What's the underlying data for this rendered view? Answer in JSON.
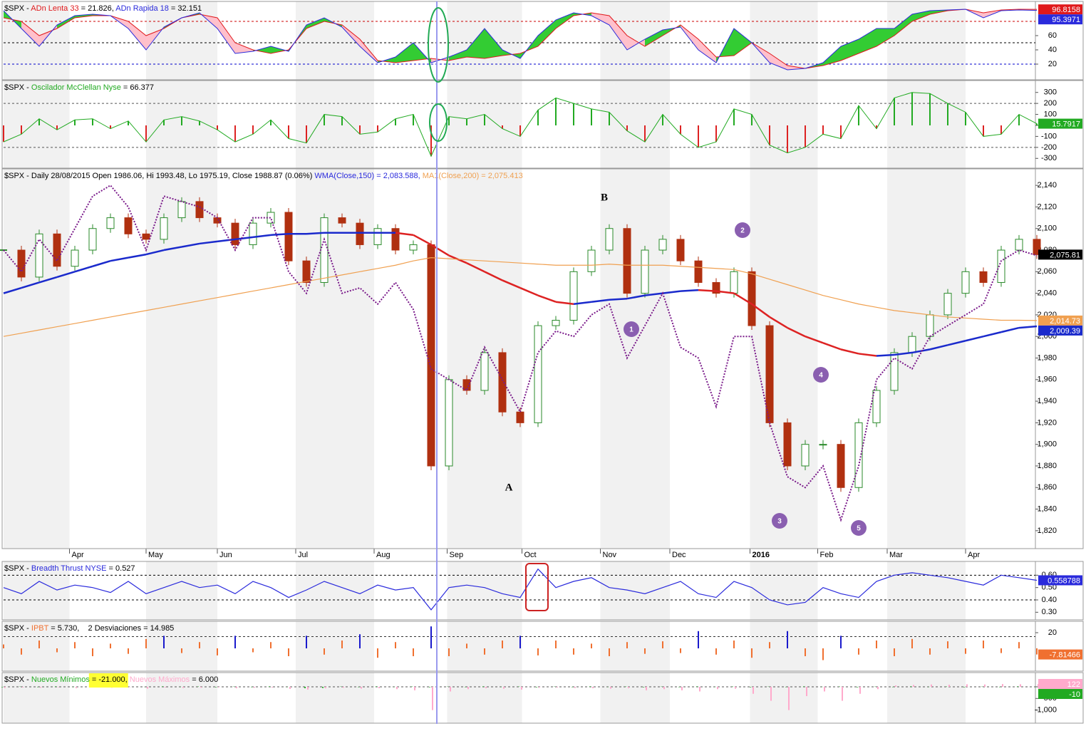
{
  "chart_data": [
    {
      "type": "band",
      "header": [
        {
          "text": "$SPX - ",
          "color": "#000000"
        },
        {
          "text": "ADn Lenta 33",
          "color": "#e0191b"
        },
        {
          "text": " = 21.826, ",
          "color": "#000000"
        },
        {
          "text": "ADn Rapida 18",
          "color": "#2a2adc"
        },
        {
          "text": " = 32.151",
          "color": "#000000"
        }
      ],
      "ylim": [
        10,
        100
      ],
      "yticks": [
        20,
        40,
        60
      ],
      "levels": [
        {
          "value": 80,
          "color": "#cc0000"
        },
        {
          "value": 50,
          "color": "#000000"
        },
        {
          "value": 20,
          "color": "#0000cc"
        }
      ],
      "fill_up": "#33cc33",
      "fill_down": "#ffc0cb",
      "series": [
        {
          "color": "#e0191b",
          "end_label": true,
          "values": [
            85,
            80,
            60,
            70,
            85,
            88,
            88,
            80,
            60,
            70,
            85,
            90,
            85,
            50,
            40,
            35,
            40,
            70,
            80,
            75,
            55,
            25,
            22,
            25,
            28,
            25,
            30,
            28,
            32,
            35,
            45,
            70,
            88,
            92,
            88,
            60,
            45,
            60,
            75,
            55,
            30,
            32,
            50,
            35,
            18,
            14,
            18,
            25,
            35,
            45,
            60,
            80,
            90,
            95,
            97,
            92,
            96,
            97,
            96.8158
          ]
        },
        {
          "color": "#2a2adc",
          "end_label": true,
          "values": [
            95,
            70,
            45,
            75,
            88,
            90,
            88,
            70,
            40,
            72,
            85,
            92,
            70,
            35,
            38,
            45,
            38,
            75,
            85,
            72,
            45,
            22,
            30,
            50,
            22,
            30,
            40,
            70,
            40,
            28,
            60,
            82,
            92,
            88,
            75,
            40,
            55,
            68,
            72,
            40,
            22,
            70,
            50,
            22,
            12,
            14,
            22,
            45,
            55,
            70,
            70,
            90,
            95,
            96,
            97,
            85,
            95,
            96,
            95.3971
          ]
        }
      ]
    },
    {
      "type": "bar",
      "header": [
        {
          "text": "$SPX - ",
          "color": "#000000"
        },
        {
          "text": "Oscilador McClellan Nyse",
          "color": "#22aa22"
        },
        {
          "text": " = 66.377",
          "color": "#000000"
        }
      ],
      "ylim": [
        -350,
        350
      ],
      "yticks": [
        300,
        200,
        100,
        0,
        -100,
        -200,
        -300
      ],
      "levels": [
        {
          "value": 200,
          "color": "#555555"
        },
        {
          "value": -200,
          "color": "#555555"
        }
      ],
      "series": [
        {
          "color": "#22aa22",
          "neg_color": "#dd2222",
          "outline": true,
          "end_label": true,
          "values": [
            -150,
            -80,
            60,
            -40,
            50,
            60,
            -30,
            40,
            -150,
            50,
            80,
            40,
            -40,
            -150,
            -80,
            50,
            -120,
            -160,
            100,
            80,
            -80,
            -60,
            60,
            100,
            -280,
            80,
            60,
            100,
            -30,
            -100,
            140,
            250,
            200,
            150,
            120,
            -50,
            -150,
            100,
            -80,
            -200,
            -150,
            150,
            100,
            -180,
            -250,
            -200,
            -80,
            -120,
            180,
            -30,
            250,
            300,
            290,
            200,
            120,
            -100,
            -80,
            100,
            15.7917
          ]
        }
      ]
    },
    {
      "type": "line",
      "header": [
        {
          "text": "$SPX - Daily 28/08/2015 Open 1986.06, Hi 1993.48, Lo 1975.19, Close 1988.87 (0.06%) ",
          "color": "#000000"
        },
        {
          "text": "WMA(Close,150) = 2,083.588, ",
          "color": "#2a2adc"
        },
        {
          "text": "MA1(Close,200) = 2,075.413",
          "color": "#f0a050"
        }
      ],
      "xlim": [
        0,
        58
      ],
      "xticks": [
        {
          "value": 3.7,
          "label": "Apr"
        },
        {
          "value": 8,
          "label": "May"
        },
        {
          "value": 12,
          "label": "Jun"
        },
        {
          "value": 16.4,
          "label": "Jul"
        },
        {
          "value": 20.8,
          "label": "Aug"
        },
        {
          "value": 24.9,
          "label": "Sep"
        },
        {
          "value": 29.1,
          "label": "Oct"
        },
        {
          "value": 33.5,
          "label": "Nov"
        },
        {
          "value": 37.4,
          "label": "Dec"
        },
        {
          "value": 41.9,
          "label": "2016",
          "bold": true
        },
        {
          "value": 45.7,
          "label": "Feb"
        },
        {
          "value": 49.6,
          "label": "Mar"
        },
        {
          "value": 54,
          "label": "Apr"
        }
      ],
      "ylim": [
        1810,
        2150
      ],
      "yticks": [
        {
          "value": 1820,
          "label": "1,820"
        },
        {
          "value": 1840,
          "label": "1,840"
        },
        {
          "value": 1860,
          "label": "1,860"
        },
        {
          "value": 1880,
          "label": "1,880"
        },
        {
          "value": 1900,
          "label": "1,900"
        },
        {
          "value": 1920,
          "label": "1,920"
        },
        {
          "value": 1940,
          "label": "1,940"
        },
        {
          "value": 1960,
          "label": "1,960"
        },
        {
          "value": 1980,
          "label": "1,980"
        },
        {
          "value": 2000,
          "label": "2,000"
        },
        {
          "value": 2020,
          "label": "2,020"
        },
        {
          "value": 2040,
          "label": "2,040"
        },
        {
          "value": 2060,
          "label": "2,060"
        },
        {
          "value": 2080,
          "label": "2,080"
        },
        {
          "value": 2100,
          "label": "2,100"
        },
        {
          "value": 2120,
          "label": "2,120"
        },
        {
          "value": 2140,
          "label": "2,140"
        }
      ],
      "annotations": [
        "A",
        "B",
        "1",
        "2",
        "3",
        "4",
        "5"
      ],
      "series": [
        {
          "style": "candles",
          "color": "#2a8a2a",
          "down_color": "#b03010",
          "label_color": "#000000",
          "last_label": "2,075.81",
          "values": [
            2080,
            2055,
            2095,
            2065,
            2080,
            2100,
            2110,
            2095,
            2090,
            2110,
            2125,
            2110,
            2105,
            2085,
            2105,
            2115,
            2070,
            2050,
            2110,
            2105,
            2085,
            2100,
            2080,
            2085,
            1880,
            1960,
            1950,
            1985,
            1930,
            1920,
            2010,
            2015,
            2060,
            2080,
            2100,
            2040,
            2080,
            2090,
            2070,
            2050,
            2040,
            2060,
            2010,
            1920,
            1880,
            1900,
            1900,
            1860,
            1920,
            1950,
            1985,
            2000,
            2020,
            2040,
            2060,
            2050,
            2080,
            2090,
            2075.81
          ]
        },
        {
          "style": "solid",
          "color": "#1a2acc",
          "down_color": "#dd2222",
          "last_label": "2,009.39",
          "values": [
            2040,
            2045,
            2050,
            2055,
            2060,
            2065,
            2070,
            2073,
            2076,
            2080,
            2083,
            2086,
            2088,
            2090,
            2092,
            2094,
            2095,
            2095,
            2096,
            2096,
            2096,
            2096,
            2096,
            2094,
            2085,
            2075,
            2068,
            2060,
            2052,
            2045,
            2038,
            2032,
            2030,
            2032,
            2034,
            2035,
            2038,
            2040,
            2042,
            2043,
            2042,
            2040,
            2030,
            2018,
            2008,
            2000,
            1994,
            1988,
            1984,
            1982,
            1983,
            1985,
            1988,
            1992,
            1996,
            2000,
            2004,
            2008,
            2009.39
          ]
        },
        {
          "style": "solid",
          "color": "#f0a050",
          "last_label": "2,014.73",
          "values": [
            2000,
            2003,
            2006,
            2009,
            2012,
            2015,
            2018,
            2021,
            2024,
            2027,
            2030,
            2033,
            2036,
            2039,
            2042,
            2045,
            2048,
            2051,
            2054,
            2057,
            2060,
            2063,
            2066,
            2070,
            2073,
            2072,
            2071,
            2070,
            2069,
            2068,
            2067,
            2066,
            2066,
            2066,
            2067,
            2066,
            2066,
            2066,
            2065,
            2064,
            2063,
            2062,
            2058,
            2053,
            2048,
            2043,
            2038,
            2034,
            2030,
            2027,
            2024,
            2022,
            2020,
            2018,
            2017,
            2016,
            2015,
            2015,
            2014.73
          ]
        },
        {
          "style": "dotted",
          "color": "#7a1a8a",
          "values": [
            2080,
            2060,
            2090,
            2070,
            2100,
            2130,
            2140,
            2120,
            2080,
            2130,
            2125,
            2120,
            2110,
            2080,
            2110,
            2110,
            2060,
            2040,
            2090,
            2040,
            2045,
            2030,
            2050,
            2025,
            1970,
            1960,
            1950,
            1990,
            1960,
            1930,
            1985,
            2005,
            2000,
            2020,
            2030,
            1980,
            2010,
            2040,
            1990,
            1980,
            1935,
            2000,
            2000,
            1920,
            1870,
            1860,
            1880,
            1830,
            1880,
            1960,
            1980,
            1970,
            2000,
            2010,
            2020,
            2030,
            2070,
            2080,
            2075
          ]
        }
      ]
    },
    {
      "type": "line",
      "header": [
        {
          "text": "$SPX - ",
          "color": "#000000"
        },
        {
          "text": "Breadth Thrust NYSE",
          "color": "#2a2adc"
        },
        {
          "text": " = 0.527",
          "color": "#000000"
        }
      ],
      "ylim": [
        0.25,
        0.7
      ],
      "yticks": [
        {
          "value": 0.6,
          "label": "0.60"
        },
        {
          "value": 0.5,
          "label": "0.50"
        },
        {
          "value": 0.4,
          "label": "0.40"
        },
        {
          "value": 0.3,
          "label": "0.30"
        }
      ],
      "levels": [
        {
          "value": 0.6,
          "color": "#000000"
        },
        {
          "value": 0.4,
          "color": "#000000"
        }
      ],
      "series": [
        {
          "style": "solid",
          "color": "#2a2adc",
          "end_label": true,
          "values": [
            0.5,
            0.45,
            0.55,
            0.48,
            0.52,
            0.5,
            0.46,
            0.55,
            0.45,
            0.5,
            0.55,
            0.5,
            0.52,
            0.45,
            0.55,
            0.5,
            0.42,
            0.48,
            0.55,
            0.5,
            0.45,
            0.52,
            0.48,
            0.5,
            0.32,
            0.5,
            0.52,
            0.5,
            0.45,
            0.42,
            0.65,
            0.5,
            0.55,
            0.58,
            0.5,
            0.48,
            0.45,
            0.5,
            0.55,
            0.45,
            0.42,
            0.55,
            0.5,
            0.4,
            0.36,
            0.38,
            0.5,
            0.45,
            0.42,
            0.55,
            0.6,
            0.62,
            0.6,
            0.58,
            0.55,
            0.52,
            0.6,
            0.58,
            0.558788
          ]
        }
      ]
    },
    {
      "type": "bar",
      "header": [
        {
          "text": "$SPX - ",
          "color": "#000000"
        },
        {
          "text": "IPBT",
          "color": "#f07030"
        },
        {
          "text": " = 5.730,    2 Desviaciones = ",
          "color": "#000000"
        }
      ],
      "deviation": 14.985,
      "spike_color": "#1a1acc",
      "ylim": [
        -20,
        30
      ],
      "yticks": [
        20
      ],
      "series": [
        {
          "color": "#f07030",
          "end_label": true,
          "values": [
            5,
            -8,
            10,
            -5,
            8,
            -10,
            6,
            -7,
            12,
            16,
            -6,
            8,
            -9,
            16,
            -5,
            8,
            -10,
            16,
            -8,
            10,
            18,
            -12,
            8,
            -10,
            28,
            -10,
            6,
            -8,
            10,
            16,
            -9,
            10,
            -8,
            6,
            -10,
            8,
            -7,
            9,
            -6,
            22,
            -8,
            10,
            -12,
            8,
            22,
            -10,
            -15,
            16,
            -8,
            10,
            -10,
            12,
            -8,
            9,
            -7,
            10,
            -6,
            8,
            -7.81466
          ]
        }
      ]
    },
    {
      "type": "bar",
      "header": [
        {
          "text": "$SPX - ",
          "color": "#000000"
        },
        {
          "text": "Nuevos Mínimos",
          "color": "#22aa22"
        },
        {
          "text": " = -21.000,",
          "color": "#000000",
          "highlight": "#ffff33"
        },
        {
          "text": " Nuevos Máximos",
          "color": "#ffaacc"
        },
        {
          "text": " = 6.000",
          "color": "#000000"
        }
      ],
      "ylim": [
        -1500,
        550
      ],
      "yticks": [
        0,
        -500,
        {
          "value": -1000,
          "label": "-1,000"
        }
      ],
      "levels": [
        {
          "value": 0,
          "color": "#555555"
        }
      ],
      "series": [
        {
          "color": "#22aa22",
          "end_label": true,
          "values": [
            -20,
            10,
            -15,
            20,
            -10,
            15,
            -20,
            10,
            -5,
            20,
            -10,
            15,
            -20,
            10,
            -15,
            20,
            -10,
            -60,
            -50,
            10,
            -15,
            20,
            -10,
            15,
            -20,
            10,
            -15,
            20,
            -10,
            15,
            -20,
            10,
            -15,
            20,
            -10,
            15,
            -20,
            10,
            -15,
            20,
            -10,
            15,
            -20,
            10,
            -15,
            20,
            -10,
            15,
            -20,
            10,
            -15,
            20,
            -10,
            15,
            -20,
            10,
            -15,
            20,
            -10
          ]
        },
        {
          "color": "#ffaacc",
          "end_label": true,
          "values": [
            -50,
            -30,
            -40,
            -20,
            -60,
            -30,
            -40,
            -20,
            -80,
            -30,
            -50,
            -40,
            -30,
            -60,
            -40,
            -30,
            -90,
            -120,
            -60,
            -40,
            -80,
            -60,
            -100,
            -150,
            -1000,
            -200,
            -100,
            -60,
            -80,
            -120,
            -40,
            -30,
            -50,
            -60,
            -80,
            -60,
            -150,
            -100,
            -150,
            -200,
            -100,
            -80,
            -300,
            -600,
            -1000,
            -400,
            -200,
            -600,
            -300,
            -100,
            60,
            80,
            100,
            90,
            110,
            100,
            120,
            110,
            122
          ]
        }
      ]
    }
  ]
}
